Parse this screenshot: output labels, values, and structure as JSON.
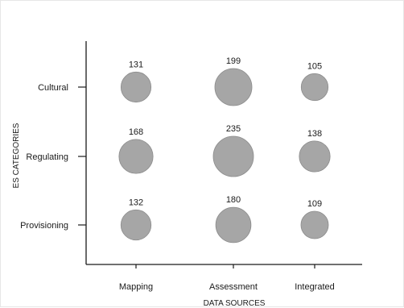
{
  "chart_data": {
    "type": "scatter",
    "title": "",
    "xlabel": "DATA SOURCES",
    "ylabel": "ES CATEGORIES",
    "x_categories": [
      "Mapping",
      "Assessment",
      "Integrated"
    ],
    "y_categories": [
      "Provisioning",
      "Regulating",
      "Cultural"
    ],
    "points": [
      {
        "x": "Mapping",
        "y": "Cultural",
        "value": 131
      },
      {
        "x": "Assessment",
        "y": "Cultural",
        "value": 199
      },
      {
        "x": "Integrated",
        "y": "Cultural",
        "value": 105
      },
      {
        "x": "Mapping",
        "y": "Regulating",
        "value": 168
      },
      {
        "x": "Assessment",
        "y": "Regulating",
        "value": 235
      },
      {
        "x": "Integrated",
        "y": "Regulating",
        "value": 138
      },
      {
        "x": "Mapping",
        "y": "Provisioning",
        "value": 132
      },
      {
        "x": "Assessment",
        "y": "Provisioning",
        "value": 180
      },
      {
        "x": "Integrated",
        "y": "Provisioning",
        "value": 109
      }
    ],
    "grid": false,
    "colors": {
      "bubble_fill": "#a6a6a6",
      "bubble_stroke": "#8c8c8c",
      "axis": "#1a1a1a",
      "text": "#1a1a1a"
    }
  }
}
